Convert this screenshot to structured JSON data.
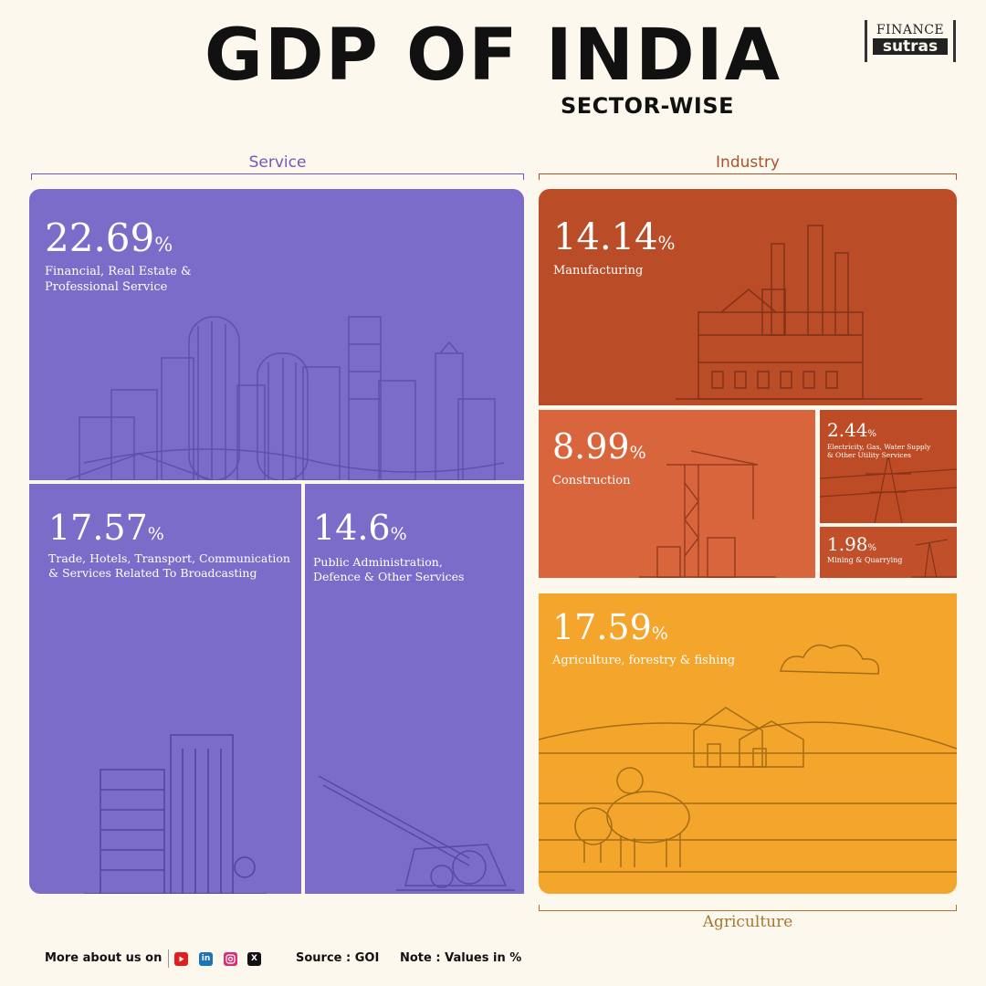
{
  "header": {
    "title": "GDP OF INDIA",
    "subtitle": "SECTOR-WISE",
    "logo_top": "FINANCE",
    "logo_bottom": "sutras"
  },
  "groups": {
    "service": "Service",
    "industry": "Industry",
    "agriculture": "Agriculture"
  },
  "colors": {
    "service": "#7b6cc9",
    "manufacturing": "#ba4c27",
    "construction": "#d9653d",
    "utility": "#bd4b26",
    "mining": "#c04f2a",
    "agriculture": "#f4a52b",
    "service_label": "#6a5cbb",
    "industry_label": "#a8532c",
    "agriculture_label": "#a8762e"
  },
  "chart_data": {
    "type": "treemap",
    "title": "GDP OF INDIA",
    "subtitle": "SECTOR-WISE",
    "unit": "%",
    "groups": [
      {
        "name": "Service",
        "items": [
          {
            "label": "Financial, Real Estate & Professional Service",
            "value": 22.69,
            "value_text": "22.69"
          },
          {
            "label": "Trade, Hotels, Transport, Communication & Services Related To Broadcasting",
            "value": 17.57,
            "value_text": "17.57"
          },
          {
            "label": "Public Administration, Defence & Other Services",
            "value": 14.6,
            "value_text": "14.6"
          }
        ]
      },
      {
        "name": "Industry",
        "items": [
          {
            "label": "Manufacturing",
            "value": 14.14,
            "value_text": "14.14"
          },
          {
            "label": "Construction",
            "value": 8.99,
            "value_text": "8.99"
          },
          {
            "label": "Electricity, Gas, Water Supply & Other Utility Services",
            "value": 2.44,
            "value_text": "2.44"
          },
          {
            "label": "Mining & Quarrying",
            "value": 1.98,
            "value_text": "1.98"
          }
        ]
      },
      {
        "name": "Agriculture",
        "items": [
          {
            "label": "Agriculture, forestry & fishing",
            "value": 17.59,
            "value_text": "17.59"
          }
        ]
      }
    ]
  },
  "labels": {
    "financial_line1": "Financial, Real Estate &",
    "financial_line2": "Professional Service",
    "trade_line1": "Trade, Hotels, Transport, Communication",
    "trade_line2": "& Services Related To Broadcasting",
    "public_line1": "Public Administration,",
    "public_line2": "Defence & Other Services",
    "utility_line1": "Electricity, Gas, Water Supply",
    "utility_line2": "& Other Utility Services"
  },
  "footer": {
    "more": "More about us on",
    "source": "Source : GOI",
    "note": "Note : Values in %",
    "icons": [
      "youtube-icon",
      "linkedin-icon",
      "instagram-icon",
      "x-icon"
    ],
    "linkedin_glyph": "in",
    "x_glyph": "X"
  }
}
